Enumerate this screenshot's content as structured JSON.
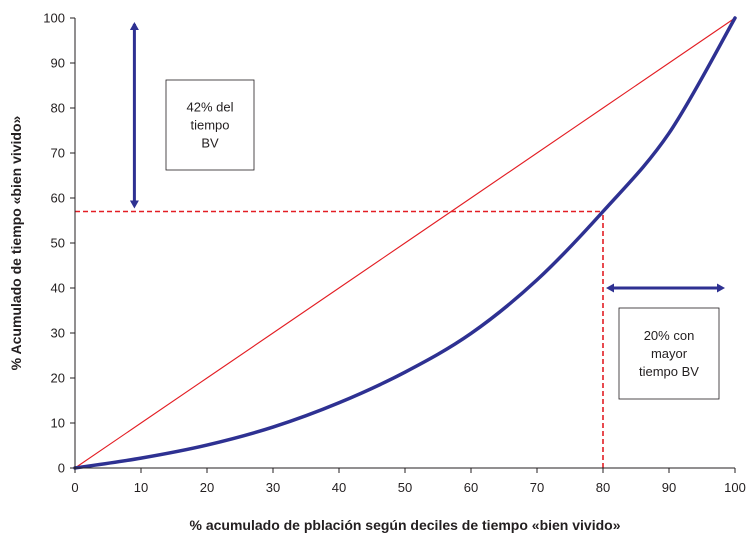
{
  "chart_data": {
    "type": "line",
    "xlabel": "% acumulado de pblación según deciles de tiempo «bien vivido»",
    "ylabel": "% Acumulado de tiempo «bien vivido»",
    "xlim": [
      0,
      100
    ],
    "ylim": [
      0,
      100
    ],
    "x_ticks": [
      "0",
      "10",
      "20",
      "30",
      "40",
      "50",
      "60",
      "70",
      "80",
      "90",
      "100"
    ],
    "y_ticks": [
      "0",
      "10",
      "20",
      "30",
      "40",
      "50",
      "60",
      "70",
      "80",
      "90",
      "100"
    ],
    "grid": false,
    "legend": "none",
    "series": [
      {
        "x": [
          0,
          10,
          20,
          30,
          40,
          50,
          60,
          70,
          80,
          90,
          100
        ],
        "y": [
          0,
          10,
          20,
          30,
          40,
          50,
          60,
          70,
          80,
          90,
          100
        ],
        "color": "#e31e24"
      },
      {
        "x": [
          0,
          10,
          20,
          30,
          40,
          50,
          60,
          70,
          80,
          90,
          100
        ],
        "y": [
          0,
          2.2,
          5.1,
          9.1,
          14.5,
          21.3,
          29.9,
          41.8,
          57.0,
          74.4,
          100
        ],
        "color": "#2e3192"
      }
    ],
    "reference_lines": [
      {
        "orientation": "horizontal",
        "value": 57,
        "from": 0,
        "to": 80,
        "color": "#e31e24",
        "style": "dashed"
      },
      {
        "orientation": "vertical",
        "value": 80,
        "from": 0,
        "to": 57,
        "color": "#e31e24",
        "style": "dashed"
      }
    ],
    "annotations": [
      {
        "text_lines": [
          "42% del",
          "tiempo",
          "BV"
        ],
        "arrow": "vertical",
        "arrow_range": [
          57,
          100
        ],
        "arrow_at_x": 9
      },
      {
        "text_lines": [
          "20% con",
          "mayor",
          "tiempo BV"
        ],
        "arrow": "horizontal",
        "arrow_range": [
          80,
          100
        ],
        "arrow_at_y": 40
      }
    ],
    "colors": {
      "axis": "#231f20",
      "arrow": "#2e3192",
      "box_border": "#231f20"
    }
  }
}
